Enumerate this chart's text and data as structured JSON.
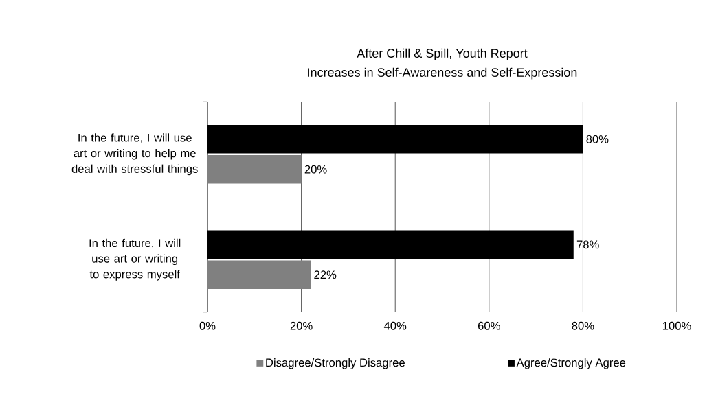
{
  "chart_data": {
    "type": "bar",
    "orientation": "horizontal",
    "title": "After Chill & Spill, Youth Report",
    "subtitle": "Increases in Self-Awareness and Self-Expression",
    "categories": [
      "In the future, I will use art or writing to help me deal with stressful things",
      "In the future, I will use art or writing to express myself"
    ],
    "series": [
      {
        "name": "Disagree/Strongly Disagree",
        "color": "#808080",
        "values": [
          20,
          22
        ],
        "value_labels": [
          "20%",
          "22%"
        ]
      },
      {
        "name": "Agree/Strongly Agree",
        "color": "#000000",
        "values": [
          80,
          78
        ],
        "value_labels": [
          "80%",
          "78%"
        ]
      }
    ],
    "xlim": [
      0,
      100
    ],
    "xticks": [
      {
        "value": 0,
        "label": "0%"
      },
      {
        "value": 20,
        "label": "20%"
      },
      {
        "value": 40,
        "label": "40%"
      },
      {
        "value": 60,
        "label": "60%"
      },
      {
        "value": 80,
        "label": "80%"
      },
      {
        "value": 100,
        "label": "100%"
      }
    ],
    "grid": "x",
    "legend": "bottom"
  }
}
